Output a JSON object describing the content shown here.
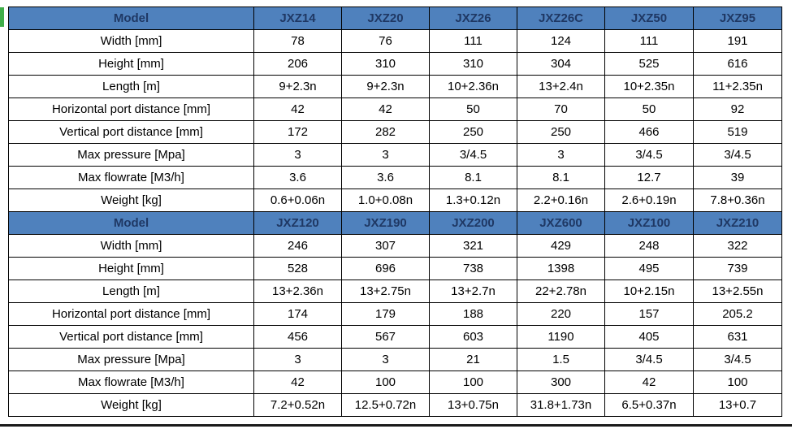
{
  "table": {
    "corner_label": "Model",
    "row_labels": [
      "Width [mm]",
      "Height [mm]",
      "Length [m]",
      "Horizontal port distance [mm]",
      "Vertical port distance  [mm]",
      "Max pressure [Mpa]",
      "Max flowrate  [M3/h]",
      "Weight [kg]"
    ],
    "sections": [
      {
        "models": [
          "JXZ14",
          "JXZ20",
          "JXZ26",
          "JXZ26C",
          "JXZ50",
          "JXZ95"
        ],
        "rows": [
          [
            "78",
            "76",
            "111",
            "124",
            "111",
            "191"
          ],
          [
            "206",
            "310",
            "310",
            "304",
            "525",
            "616"
          ],
          [
            "9+2.3n",
            "9+2.3n",
            "10+2.36n",
            "13+2.4n",
            "10+2.35n",
            "11+2.35n"
          ],
          [
            "42",
            "42",
            "50",
            "70",
            "50",
            "92"
          ],
          [
            "172",
            "282",
            "250",
            "250",
            "466",
            "519"
          ],
          [
            "3",
            "3",
            "3/4.5",
            "3",
            "3/4.5",
            "3/4.5"
          ],
          [
            "3.6",
            "3.6",
            "8.1",
            "8.1",
            "12.7",
            "39"
          ],
          [
            "0.6+0.06n",
            "1.0+0.08n",
            "1.3+0.12n",
            "2.2+0.16n",
            "2.6+0.19n",
            "7.8+0.36n"
          ]
        ]
      },
      {
        "models": [
          "JXZ120",
          "JXZ190",
          "JXZ200",
          "JXZ600",
          "JXZ100",
          "JXZ210"
        ],
        "rows": [
          [
            "246",
            "307",
            "321",
            "429",
            "248",
            "322"
          ],
          [
            "528",
            "696",
            "738",
            "1398",
            "495",
            "739"
          ],
          [
            "13+2.36n",
            "13+2.75n",
            "13+2.7n",
            "22+2.78n",
            "10+2.15n",
            "13+2.55n"
          ],
          [
            "174",
            "179",
            "188",
            "220",
            "157",
            "205.2"
          ],
          [
            "456",
            "567",
            "603",
            "1190",
            "405",
            "631"
          ],
          [
            "3",
            "3",
            "21",
            "1.5",
            "3/4.5",
            "3/4.5"
          ],
          [
            "42",
            "100",
            "100",
            "300",
            "42",
            "100"
          ],
          [
            "7.2+0.52n",
            "12.5+0.72n",
            "13+0.75n",
            "31.8+1.73n",
            "6.5+0.37n",
            "13+0.7"
          ]
        ]
      }
    ],
    "colors": {
      "header_bg": "#4f81bd",
      "header_text": "#1f3864",
      "body_text": "#000000",
      "border": "#000000"
    }
  }
}
